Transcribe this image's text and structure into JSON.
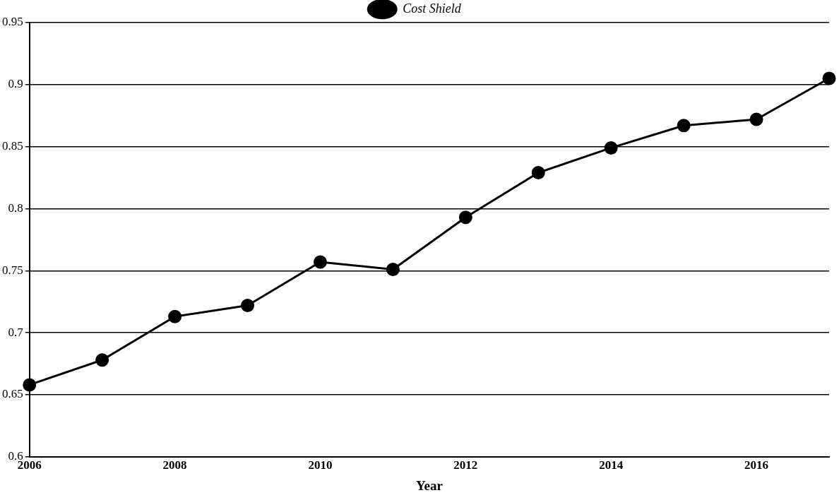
{
  "chart_data": {
    "type": "line",
    "xlabel": "Year",
    "x": [
      2006,
      2007,
      2008,
      2009,
      2010,
      2011,
      2012,
      2013,
      2014,
      2015,
      2016,
      2017
    ],
    "series": [
      {
        "name": "Cost Shield",
        "color": "#000000",
        "values": [
          0.658,
          0.678,
          0.713,
          0.722,
          0.757,
          0.751,
          0.793,
          0.829,
          0.849,
          0.867,
          0.872,
          0.905
        ]
      }
    ],
    "xlim": [
      2006,
      2017
    ],
    "xticks": [
      2006,
      2008,
      2010,
      2012,
      2014,
      2016
    ],
    "ylim": [
      0.6,
      0.95
    ],
    "yticks": [
      0.6,
      0.65,
      0.7,
      0.75,
      0.8,
      0.85,
      0.9,
      0.95
    ],
    "grid": "y",
    "legend": "top",
    "marker": "circle",
    "line_style": "solid"
  }
}
